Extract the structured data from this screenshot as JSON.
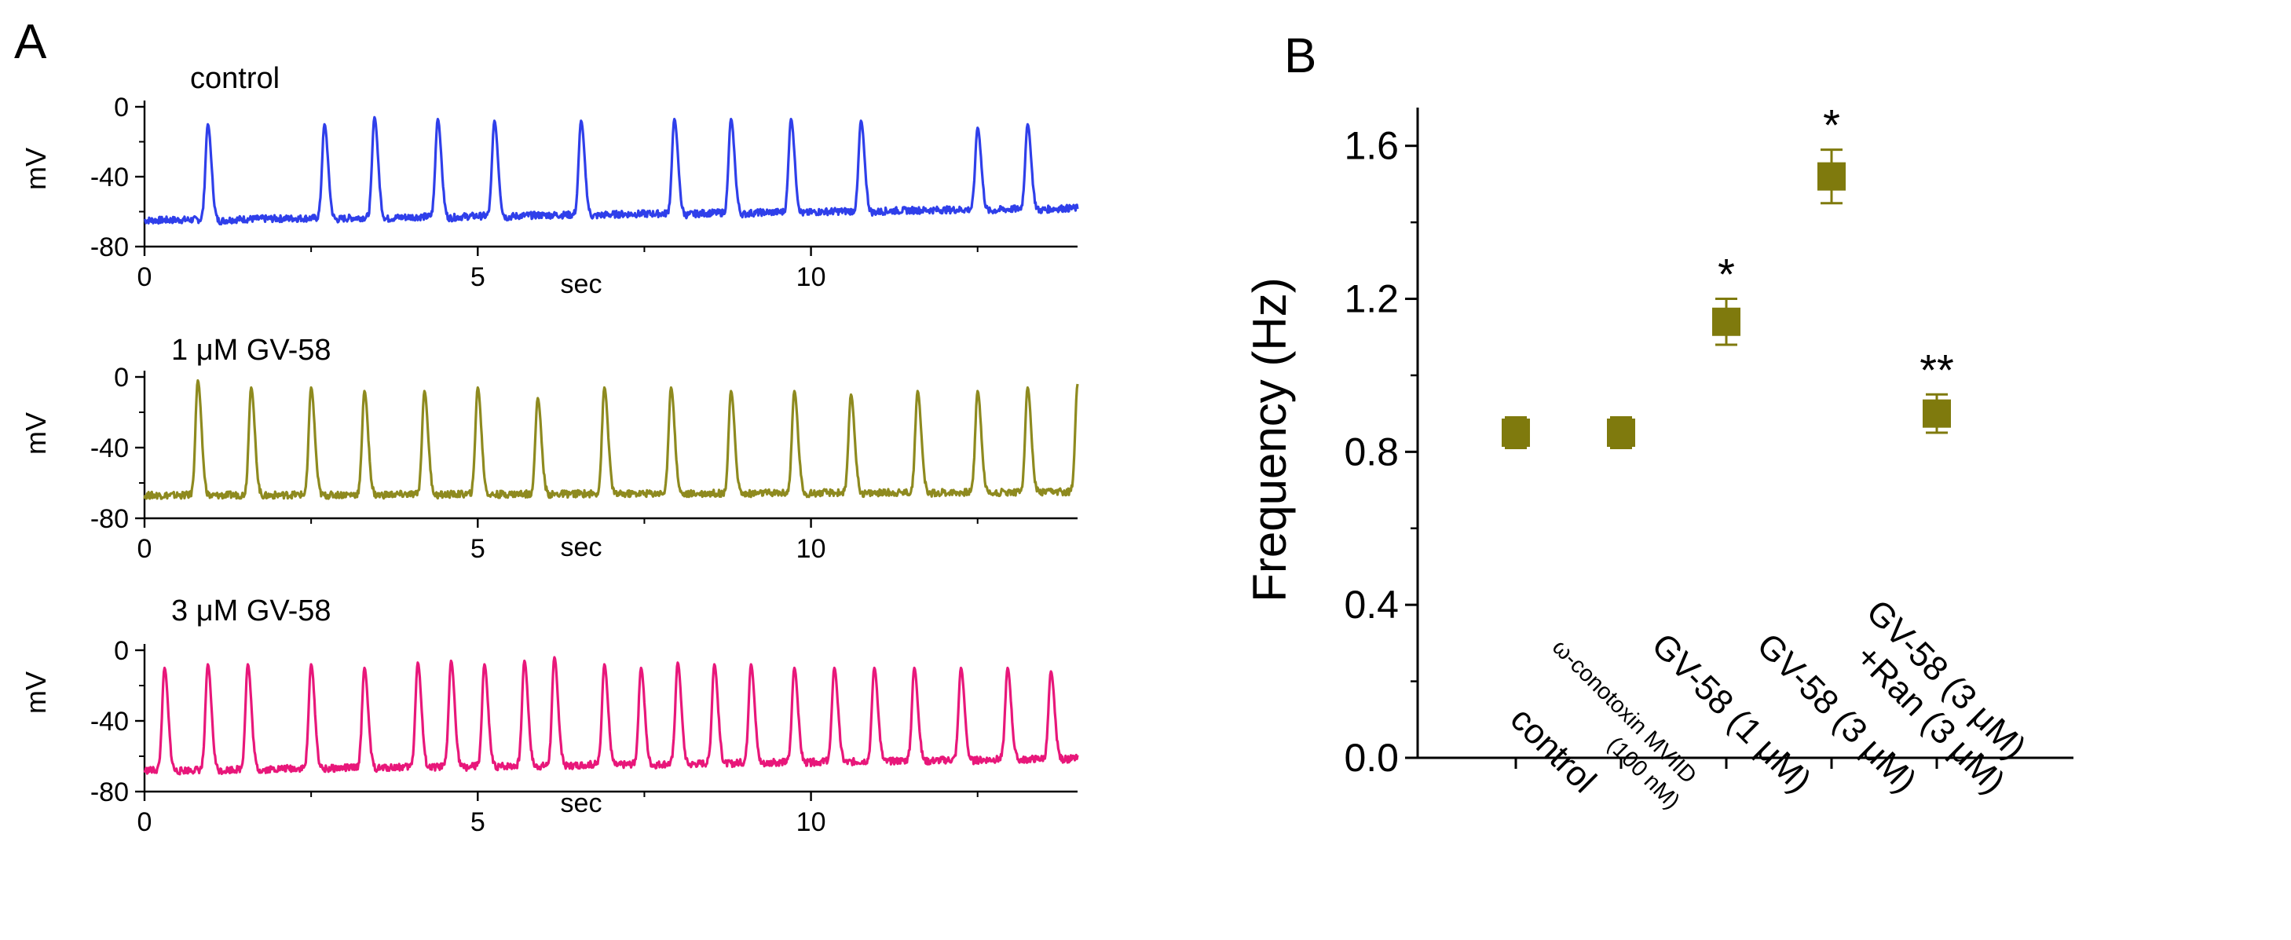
{
  "panel_a": {
    "label": "A",
    "mu_symbol": "μ",
    "time_label": "sec",
    "y_label": "mV",
    "y_ticks": [
      0,
      -40,
      -80
    ],
    "x_ticks": [
      0,
      5,
      10
    ],
    "x_range_sec": [
      0,
      14.0
    ],
    "traces": [
      {
        "title": "control",
        "title_prefix": "",
        "title_suffix": "",
        "color": "#2f3fea",
        "baseline_start_mv": -65,
        "baseline_end_mv": -58,
        "trough_mv": -70,
        "spike_times_sec": [
          0.95,
          2.7,
          3.45,
          4.4,
          5.25,
          6.55,
          7.95,
          8.8,
          9.7,
          10.75,
          12.5,
          13.25
        ],
        "spike_peaks_mv": [
          -10,
          -10,
          -6,
          -7,
          -8,
          -8,
          -7,
          -7,
          -7,
          -8,
          -12,
          -10
        ]
      },
      {
        "title": "",
        "title_prefix": "1 ",
        "title_suffix": "M GV-58",
        "color": "#8e8a1f",
        "baseline_start_mv": -67,
        "baseline_end_mv": -65,
        "trough_mv": -70,
        "spike_times_sec": [
          0.8,
          1.6,
          2.5,
          3.3,
          4.2,
          5.0,
          5.9,
          6.9,
          7.9,
          8.8,
          9.75,
          10.6,
          11.6,
          12.5,
          13.25,
          14.0
        ],
        "spike_peaks_mv": [
          -2,
          -6,
          -6,
          -8,
          -8,
          -6,
          -12,
          -6,
          -6,
          -8,
          -8,
          -10,
          -8,
          -8,
          -6,
          -4
        ]
      },
      {
        "title": "",
        "title_prefix": "3 ",
        "title_suffix": "M GV-58",
        "color": "#e8177a",
        "baseline_start_mv": -68,
        "baseline_end_mv": -61,
        "trough_mv": -72,
        "spike_times_sec": [
          0.3,
          0.95,
          1.55,
          2.5,
          3.3,
          4.1,
          4.6,
          5.1,
          5.7,
          6.15,
          6.9,
          7.45,
          8.0,
          8.55,
          9.1,
          9.75,
          10.35,
          10.95,
          11.55,
          12.25,
          12.95,
          13.6
        ],
        "spike_peaks_mv": [
          -10,
          -8,
          -8,
          -8,
          -10,
          -7,
          -6,
          -8,
          -6,
          -4,
          -8,
          -10,
          -7,
          -8,
          -8,
          -10,
          -10,
          -10,
          -10,
          -10,
          -10,
          -12
        ]
      }
    ]
  },
  "chart_data": {
    "type": "scatter",
    "panel_label": "B",
    "ylabel": "Frequency (Hz)",
    "xlabel": "",
    "ylim": [
      0.0,
      1.7
    ],
    "y_ticks": [
      0.0,
      0.4,
      0.8,
      1.2,
      1.6
    ],
    "y_tick_labels": [
      "0.0",
      "0.4",
      "0.8",
      "1.2",
      "1.6"
    ],
    "grid": false,
    "marker": "square",
    "marker_color": "#7f7a0d",
    "mu_symbol": "μ",
    "omega_symbol": "ω",
    "categories": [
      {
        "line1_a": "control",
        "line1_b": "",
        "line1_c": "",
        "line2_a": "",
        "line2_b": "",
        "line2_c": ""
      },
      {
        "line1_a": "ω-conotoxin MVIID",
        "line1_b": "",
        "line1_c": "",
        "line2_a": "(100 nM)",
        "line2_b": "",
        "line2_c": ""
      },
      {
        "line1_a": "GV-58 (1 ",
        "line1_b": "μ",
        "line1_c": "M)",
        "line2_a": "",
        "line2_b": "",
        "line2_c": ""
      },
      {
        "line1_a": "GV-58 (3 ",
        "line1_b": "μ",
        "line1_c": "M)",
        "line2_a": "",
        "line2_b": "",
        "line2_c": ""
      },
      {
        "line1_a": "GV-58 (3 ",
        "line1_b": "μ",
        "line1_c": "M)",
        "line2_a": "+Ran (3 ",
        "line2_b": "μ",
        "line2_c": "M)"
      }
    ],
    "series": [
      {
        "name": "Frequency",
        "values": [
          0.85,
          0.85,
          1.14,
          1.52,
          0.9
        ],
        "errors": [
          0.04,
          0.04,
          0.06,
          0.07,
          0.05
        ],
        "significance": [
          "",
          "",
          "*",
          "*",
          "**"
        ]
      }
    ]
  }
}
